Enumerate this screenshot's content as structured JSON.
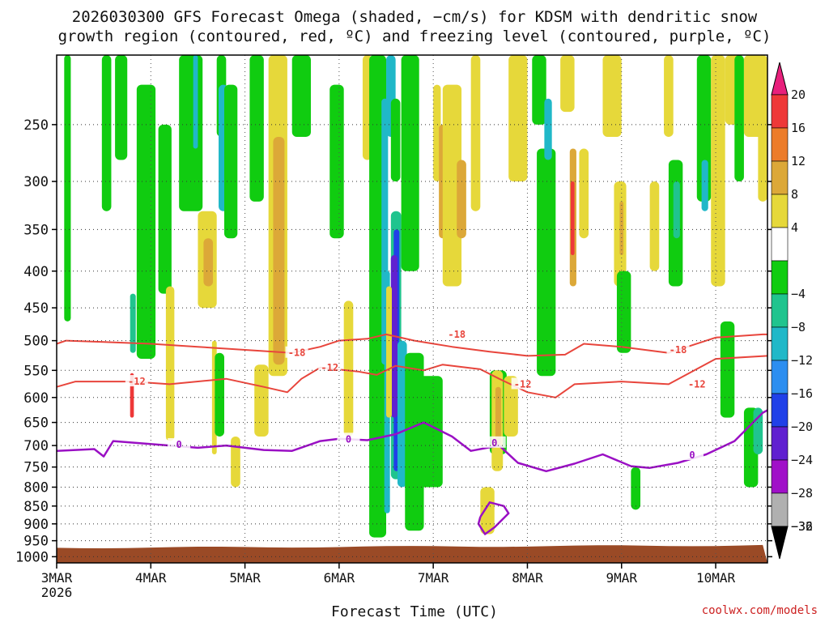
{
  "title_line1": "2026030300 GFS Forecast Omega (shaded, −cm/s) for KDSM with dendritic snow",
  "title_line2": "growth region (contoured, red, ºC) and freezing level (contoured, purple, ºC)",
  "xlabel": "Forecast Time (UTC)",
  "credit": "coolwx.com/models",
  "colors": {
    "dendritic_contour": "#e8453c",
    "freezing_contour": "#9a10c4",
    "ground": "#9a4a26"
  },
  "chart_data": {
    "type": "heatmap",
    "x_ticks": [
      "3MAR",
      "4MAR",
      "5MAR",
      "6MAR",
      "7MAR",
      "8MAR",
      "9MAR",
      "10MAR"
    ],
    "x_year": "2026",
    "x_range_days": [
      0,
      7.55
    ],
    "y_ticks": [
      250,
      300,
      350,
      400,
      450,
      500,
      550,
      600,
      650,
      700,
      750,
      800,
      850,
      900,
      950,
      1000
    ],
    "y_range_hpa": [
      200,
      1020
    ],
    "y_scale": "log-pressure",
    "grid": true,
    "colorbar": {
      "labels": [
        "20",
        "16",
        "12",
        "8",
        "4",
        "−4",
        "−8",
        "−12",
        "−16",
        "−20",
        "−24",
        "−28",
        "−32",
        "−36"
      ],
      "bins": [
        {
          "lo": 20,
          "hi": 99,
          "color": "#e8207c"
        },
        {
          "lo": 16,
          "hi": 20,
          "color": "#ee3838"
        },
        {
          "lo": 12,
          "hi": 16,
          "color": "#ec7c2a"
        },
        {
          "lo": 8,
          "hi": 12,
          "color": "#dca838"
        },
        {
          "lo": 4,
          "hi": 8,
          "color": "#e6d83a"
        },
        {
          "lo": -4,
          "hi": 4,
          "color": "#ffffff"
        },
        {
          "lo": -8,
          "hi": -4,
          "color": "#10cc10"
        },
        {
          "lo": -12,
          "hi": -8,
          "color": "#20c48e"
        },
        {
          "lo": -16,
          "hi": -12,
          "color": "#20b8c8"
        },
        {
          "lo": -20,
          "hi": -16,
          "color": "#2c8ef0"
        },
        {
          "lo": -24,
          "hi": -20,
          "color": "#2040e8"
        },
        {
          "lo": -28,
          "hi": -24,
          "color": "#6020d0"
        },
        {
          "lo": -32,
          "hi": -28,
          "color": "#a010c8"
        },
        {
          "lo": -36,
          "hi": -32,
          "color": "#b0b0b0"
        },
        {
          "lo": -99,
          "hi": -36,
          "color": "#000000"
        }
      ]
    },
    "omega_features": [
      {
        "t0": 0.08,
        "t1": 0.15,
        "p0": 200,
        "p1": 470,
        "value": -6
      },
      {
        "t0": 0.48,
        "t1": 0.58,
        "p0": 200,
        "p1": 330,
        "value": -6
      },
      {
        "t0": 0.62,
        "t1": 0.75,
        "p0": 200,
        "p1": 280,
        "value": -6
      },
      {
        "t0": 0.85,
        "t1": 1.05,
        "p0": 220,
        "p1": 530,
        "value": -6
      },
      {
        "t0": 0.78,
        "t1": 0.84,
        "p0": 430,
        "p1": 520,
        "value": -10
      },
      {
        "t0": 0.78,
        "t1": 0.82,
        "p0": 555,
        "p1": 640,
        "value": 17
      },
      {
        "t0": 1.08,
        "t1": 1.22,
        "p0": 250,
        "p1": 430,
        "value": -6
      },
      {
        "t0": 1.3,
        "t1": 1.55,
        "p0": 200,
        "p1": 330,
        "value": -6
      },
      {
        "t0": 1.45,
        "t1": 1.5,
        "p0": 200,
        "p1": 270,
        "value": -14
      },
      {
        "t0": 1.16,
        "t1": 1.25,
        "p0": 420,
        "p1": 690,
        "value": 5
      },
      {
        "t0": 1.5,
        "t1": 1.7,
        "p0": 330,
        "p1": 450,
        "value": 6
      },
      {
        "t0": 1.56,
        "t1": 1.66,
        "p0": 360,
        "p1": 420,
        "value": 9
      },
      {
        "t0": 1.65,
        "t1": 1.7,
        "p0": 500,
        "p1": 720,
        "value": 5
      },
      {
        "t0": 1.7,
        "t1": 1.8,
        "p0": 200,
        "p1": 260,
        "value": -6
      },
      {
        "t0": 1.68,
        "t1": 1.78,
        "p0": 520,
        "p1": 680,
        "value": -6
      },
      {
        "t0": 1.72,
        "t1": 1.82,
        "p0": 220,
        "p1": 330,
        "value": -14
      },
      {
        "t0": 1.78,
        "t1": 1.92,
        "p0": 220,
        "p1": 360,
        "value": -6
      },
      {
        "t0": 1.85,
        "t1": 1.95,
        "p0": 680,
        "p1": 800,
        "value": 5
      },
      {
        "t0": 2.05,
        "t1": 2.2,
        "p0": 200,
        "p1": 320,
        "value": -6
      },
      {
        "t0": 2.25,
        "t1": 2.45,
        "p0": 200,
        "p1": 560,
        "value": 5
      },
      {
        "t0": 2.3,
        "t1": 2.42,
        "p0": 260,
        "p1": 540,
        "value": 9
      },
      {
        "t0": 2.1,
        "t1": 2.25,
        "p0": 540,
        "p1": 680,
        "value": 5
      },
      {
        "t0": 2.5,
        "t1": 2.7,
        "p0": 200,
        "p1": 260,
        "value": -6
      },
      {
        "t0": 2.9,
        "t1": 3.05,
        "p0": 220,
        "p1": 360,
        "value": -6
      },
      {
        "t0": 3.05,
        "t1": 3.15,
        "p0": 440,
        "p1": 680,
        "value": 5
      },
      {
        "t0": 3.25,
        "t1": 3.35,
        "p0": 200,
        "p1": 280,
        "value": 5
      },
      {
        "t0": 3.32,
        "t1": 3.5,
        "p0": 200,
        "p1": 940,
        "value": -6
      },
      {
        "t0": 3.45,
        "t1": 3.52,
        "p0": 230,
        "p1": 540,
        "value": -14
      },
      {
        "t0": 3.5,
        "t1": 3.6,
        "p0": 200,
        "p1": 260,
        "value": -14
      },
      {
        "t0": 3.55,
        "t1": 3.65,
        "p0": 230,
        "p1": 300,
        "value": -6
      },
      {
        "t0": 3.55,
        "t1": 3.66,
        "p0": 330,
        "p1": 780,
        "value": -10
      },
      {
        "t0": 3.58,
        "t1": 3.64,
        "p0": 350,
        "p1": 760,
        "value": -22
      },
      {
        "t0": 3.48,
        "t1": 3.54,
        "p0": 400,
        "p1": 870,
        "value": -14
      },
      {
        "t0": 3.55,
        "t1": 3.62,
        "p0": 380,
        "p1": 640,
        "value": -27
      },
      {
        "t0": 3.62,
        "t1": 3.72,
        "p0": 500,
        "p1": 800,
        "value": -14
      },
      {
        "t0": 3.5,
        "t1": 3.56,
        "p0": 420,
        "p1": 640,
        "value": 5
      },
      {
        "t0": 3.66,
        "t1": 3.85,
        "p0": 200,
        "p1": 400,
        "value": -6
      },
      {
        "t0": 3.7,
        "t1": 3.9,
        "p0": 520,
        "p1": 920,
        "value": -6
      },
      {
        "t0": 3.85,
        "t1": 4.1,
        "p0": 560,
        "p1": 800,
        "value": -6
      },
      {
        "t0": 4.0,
        "t1": 4.08,
        "p0": 220,
        "p1": 300,
        "value": 5
      },
      {
        "t0": 4.06,
        "t1": 4.14,
        "p0": 250,
        "p1": 360,
        "value": 9
      },
      {
        "t0": 4.1,
        "t1": 4.3,
        "p0": 220,
        "p1": 420,
        "value": 5
      },
      {
        "t0": 4.25,
        "t1": 4.35,
        "p0": 280,
        "p1": 360,
        "value": 9
      },
      {
        "t0": 4.4,
        "t1": 4.5,
        "p0": 200,
        "p1": 330,
        "value": 5
      },
      {
        "t0": 4.6,
        "t1": 4.78,
        "p0": 550,
        "p1": 720,
        "value": -6
      },
      {
        "t0": 4.5,
        "t1": 4.65,
        "p0": 800,
        "p1": 930,
        "value": 5
      },
      {
        "t0": 4.62,
        "t1": 4.74,
        "p0": 550,
        "p1": 760,
        "value": 5
      },
      {
        "t0": 4.66,
        "t1": 4.72,
        "p0": 580,
        "p1": 700,
        "value": 10
      },
      {
        "t0": 4.75,
        "t1": 4.9,
        "p0": 560,
        "p1": 680,
        "value": 5
      },
      {
        "t0": 4.8,
        "t1": 5.0,
        "p0": 200,
        "p1": 300,
        "value": 5
      },
      {
        "t0": 5.05,
        "t1": 5.2,
        "p0": 200,
        "p1": 250,
        "value": -6
      },
      {
        "t0": 5.1,
        "t1": 5.3,
        "p0": 270,
        "p1": 560,
        "value": -6
      },
      {
        "t0": 5.18,
        "t1": 5.26,
        "p0": 230,
        "p1": 280,
        "value": -14
      },
      {
        "t0": 5.35,
        "t1": 5.5,
        "p0": 200,
        "p1": 240,
        "value": 5
      },
      {
        "t0": 5.45,
        "t1": 5.52,
        "p0": 270,
        "p1": 420,
        "value": 10
      },
      {
        "t0": 5.46,
        "t1": 5.5,
        "p0": 300,
        "p1": 380,
        "value": 17
      },
      {
        "t0": 5.55,
        "t1": 5.65,
        "p0": 270,
        "p1": 360,
        "value": 5
      },
      {
        "t0": 5.8,
        "t1": 6.0,
        "p0": 200,
        "p1": 260,
        "value": 5
      },
      {
        "t0": 5.92,
        "t1": 6.05,
        "p0": 300,
        "p1": 420,
        "value": 5
      },
      {
        "t0": 5.98,
        "t1": 6.02,
        "p0": 320,
        "p1": 380,
        "value": 10
      },
      {
        "t0": 5.95,
        "t1": 6.1,
        "p0": 400,
        "p1": 520,
        "value": -6
      },
      {
        "t0": 6.1,
        "t1": 6.2,
        "p0": 750,
        "p1": 860,
        "value": -6
      },
      {
        "t0": 6.3,
        "t1": 6.4,
        "p0": 300,
        "p1": 400,
        "value": 5
      },
      {
        "t0": 6.45,
        "t1": 6.55,
        "p0": 200,
        "p1": 260,
        "value": 5
      },
      {
        "t0": 6.5,
        "t1": 6.65,
        "p0": 280,
        "p1": 420,
        "value": -6
      },
      {
        "t0": 6.55,
        "t1": 6.62,
        "p0": 300,
        "p1": 360,
        "value": -10
      },
      {
        "t0": 6.8,
        "t1": 6.95,
        "p0": 200,
        "p1": 320,
        "value": -6
      },
      {
        "t0": 6.85,
        "t1": 6.92,
        "p0": 280,
        "p1": 330,
        "value": -14
      },
      {
        "t0": 6.95,
        "t1": 7.1,
        "p0": 200,
        "p1": 420,
        "value": 5
      },
      {
        "t0": 7.05,
        "t1": 7.2,
        "p0": 470,
        "p1": 640,
        "value": -6
      },
      {
        "t0": 7.1,
        "t1": 7.25,
        "p0": 200,
        "p1": 250,
        "value": 5
      },
      {
        "t0": 7.2,
        "t1": 7.3,
        "p0": 200,
        "p1": 300,
        "value": -6
      },
      {
        "t0": 7.3,
        "t1": 7.5,
        "p0": 200,
        "p1": 260,
        "value": 5
      },
      {
        "t0": 7.3,
        "t1": 7.45,
        "p0": 620,
        "p1": 800,
        "value": -6
      },
      {
        "t0": 7.4,
        "t1": 7.5,
        "p0": 620,
        "p1": 720,
        "value": -10
      },
      {
        "t0": 7.45,
        "t1": 7.55,
        "p0": 200,
        "p1": 320,
        "value": 5
      }
    ],
    "contours": [
      {
        "kind": "dendritic",
        "value": -18,
        "label": "-18",
        "points": [
          [
            0,
            505
          ],
          [
            0.1,
            500
          ],
          [
            0.5,
            502
          ],
          [
            1.0,
            505
          ],
          [
            1.5,
            510
          ],
          [
            2.0,
            515
          ],
          [
            2.5,
            520
          ],
          [
            2.8,
            510
          ],
          [
            3.0,
            500
          ],
          [
            3.3,
            497
          ],
          [
            3.5,
            490
          ],
          [
            3.8,
            500
          ],
          [
            4.2,
            510
          ],
          [
            4.6,
            518
          ],
          [
            5.0,
            525
          ],
          [
            5.4,
            523
          ],
          [
            5.6,
            505
          ],
          [
            6.0,
            510
          ],
          [
            6.5,
            520
          ],
          [
            7.0,
            495
          ],
          [
            7.5,
            490
          ],
          [
            7.55,
            490
          ]
        ],
        "label_at": [
          [
            2.55,
            520
          ],
          [
            4.25,
            490
          ],
          [
            6.6,
            515
          ]
        ]
      },
      {
        "kind": "dendritic",
        "value": -12,
        "label": "-12",
        "points": [
          [
            0,
            580
          ],
          [
            0.2,
            570
          ],
          [
            0.8,
            570
          ],
          [
            1.2,
            575
          ],
          [
            1.8,
            565
          ],
          [
            2.2,
            580
          ],
          [
            2.45,
            590
          ],
          [
            2.6,
            565
          ],
          [
            2.8,
            545
          ],
          [
            3.2,
            552
          ],
          [
            3.4,
            558
          ],
          [
            3.6,
            542
          ],
          [
            3.9,
            550
          ],
          [
            4.1,
            540
          ],
          [
            4.5,
            548
          ],
          [
            4.7,
            565
          ],
          [
            5.0,
            590
          ],
          [
            5.3,
            600
          ],
          [
            5.5,
            575
          ],
          [
            6.0,
            570
          ],
          [
            6.5,
            575
          ],
          [
            7.0,
            530
          ],
          [
            7.55,
            525
          ]
        ],
        "label_at": [
          [
            0.85,
            570
          ],
          [
            2.9,
            545
          ],
          [
            4.95,
            575
          ],
          [
            6.8,
            575
          ]
        ]
      },
      {
        "kind": "freezing",
        "value": 0,
        "label": "0",
        "points": [
          [
            0,
            712
          ],
          [
            0.4,
            708
          ],
          [
            0.5,
            725
          ],
          [
            0.6,
            690
          ],
          [
            0.9,
            695
          ],
          [
            1.2,
            700
          ],
          [
            1.5,
            705
          ],
          [
            1.8,
            700
          ],
          [
            2.2,
            710
          ],
          [
            2.5,
            712
          ],
          [
            2.8,
            690
          ],
          [
            3.0,
            685
          ],
          [
            3.3,
            688
          ],
          [
            3.6,
            675
          ],
          [
            3.9,
            650
          ],
          [
            4.2,
            680
          ],
          [
            4.4,
            712
          ],
          [
            4.7,
            700
          ],
          [
            4.9,
            740
          ],
          [
            5.2,
            760
          ],
          [
            5.5,
            742
          ],
          [
            5.8,
            720
          ],
          [
            6.1,
            748
          ],
          [
            6.3,
            752
          ],
          [
            6.6,
            740
          ],
          [
            6.9,
            720
          ],
          [
            7.2,
            690
          ],
          [
            7.5,
            630
          ],
          [
            7.55,
            625
          ]
        ],
        "label_at": [
          [
            1.3,
            698
          ],
          [
            3.1,
            686
          ],
          [
            4.65,
            694
          ],
          [
            6.75,
            722
          ]
        ]
      },
      {
        "kind": "freezing",
        "value": 0,
        "label": "",
        "points": [
          [
            4.5,
            880
          ],
          [
            4.6,
            840
          ],
          [
            4.75,
            850
          ],
          [
            4.8,
            870
          ],
          [
            4.65,
            910
          ],
          [
            4.55,
            930
          ],
          [
            4.48,
            900
          ],
          [
            4.5,
            880
          ]
        ],
        "label_at": []
      }
    ]
  }
}
